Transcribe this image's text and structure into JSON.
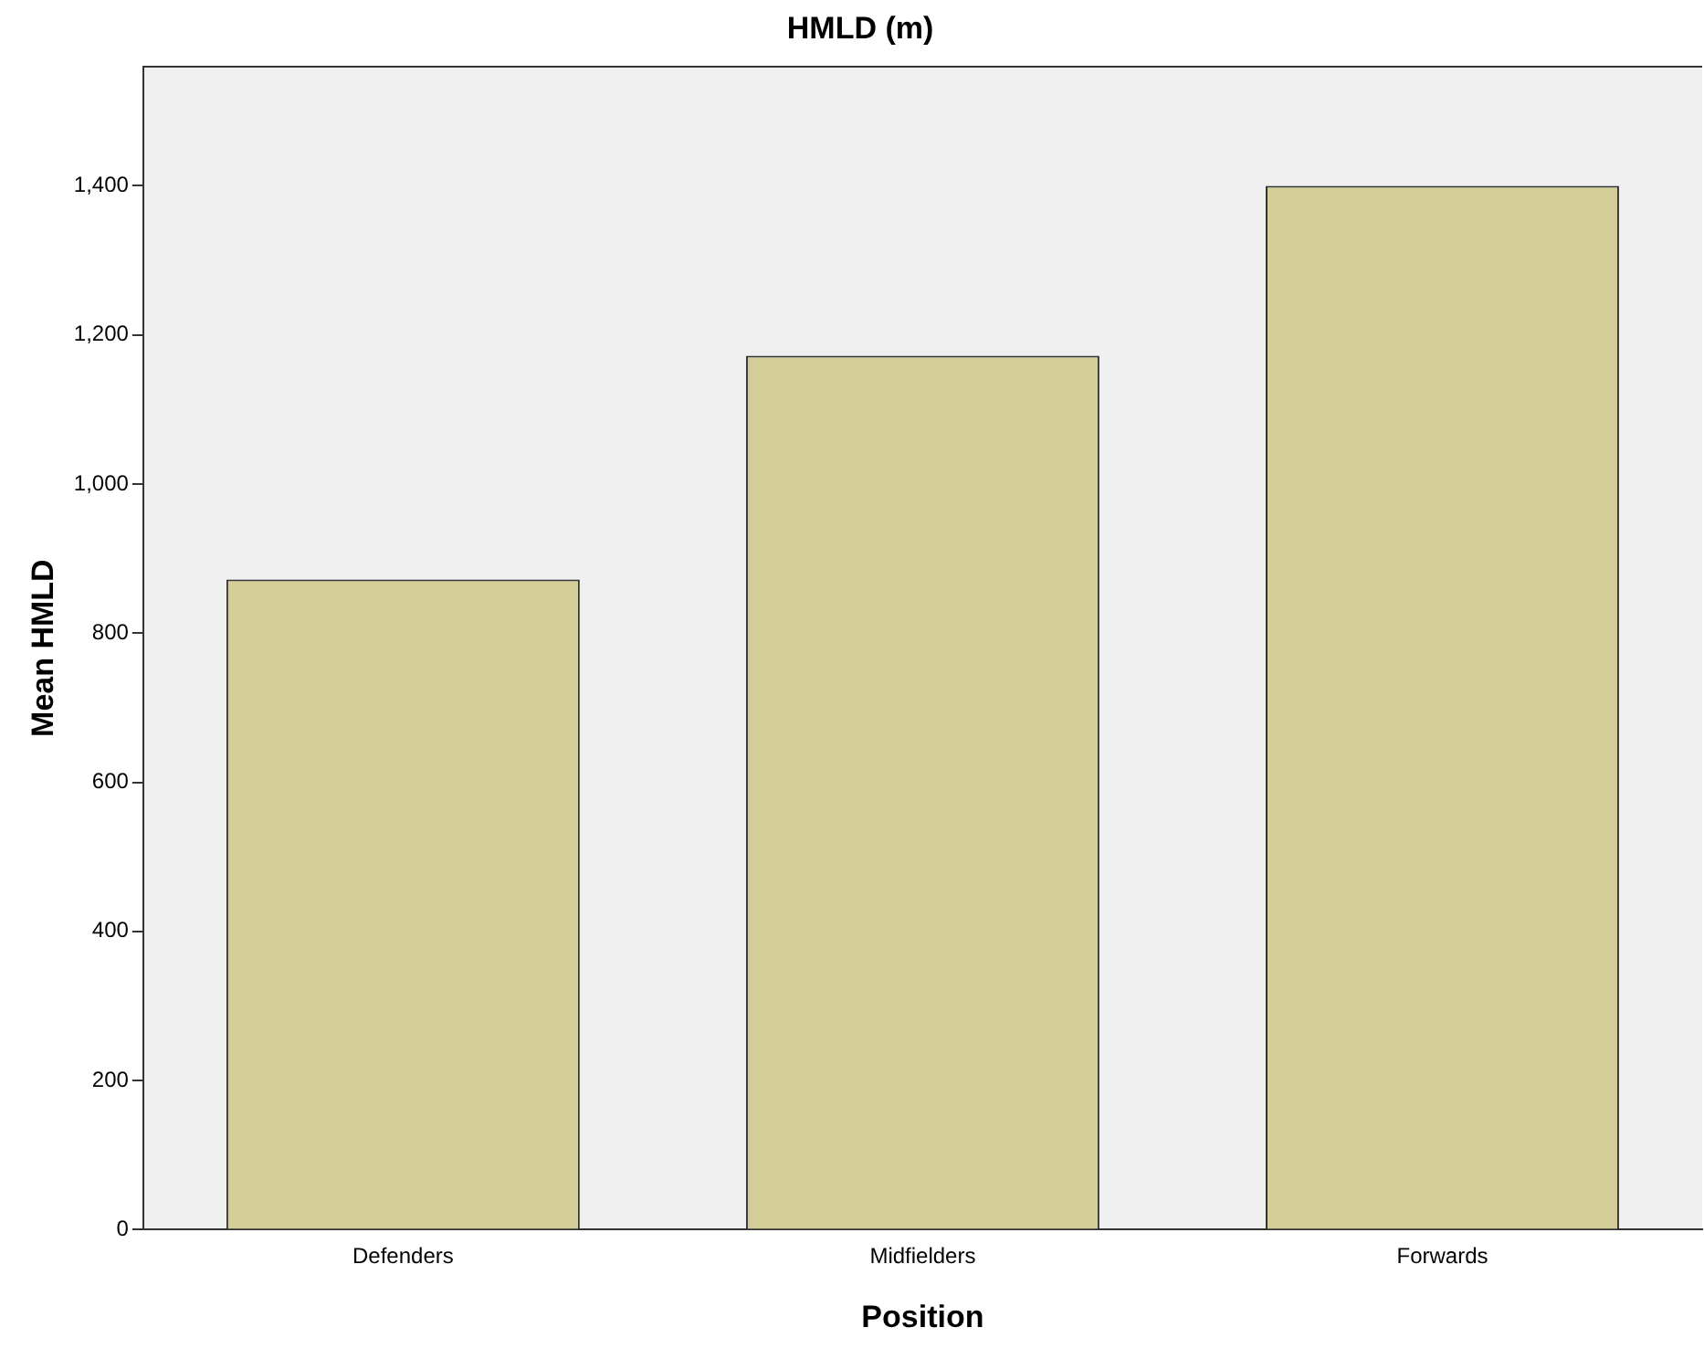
{
  "chart_data": {
    "type": "bar",
    "title": "HMLD (m)",
    "xlabel": "Position",
    "ylabel": "Mean HMLD",
    "categories": [
      "Defenders",
      "Midfielders",
      "Forwards"
    ],
    "values": [
      872,
      1172,
      1400
    ],
    "color": "#d3ce98",
    "ylim": [
      0,
      1560
    ],
    "yticks": [
      {
        "value": 0,
        "label": "0"
      },
      {
        "value": 200,
        "label": "200"
      },
      {
        "value": 400,
        "label": "400"
      },
      {
        "value": 600,
        "label": "600"
      },
      {
        "value": 800,
        "label": "800"
      },
      {
        "value": 1000,
        "label": "1,000"
      },
      {
        "value": 1200,
        "label": "1,200"
      },
      {
        "value": 1400,
        "label": "1,400"
      }
    ],
    "grid": false,
    "legend": false
  }
}
